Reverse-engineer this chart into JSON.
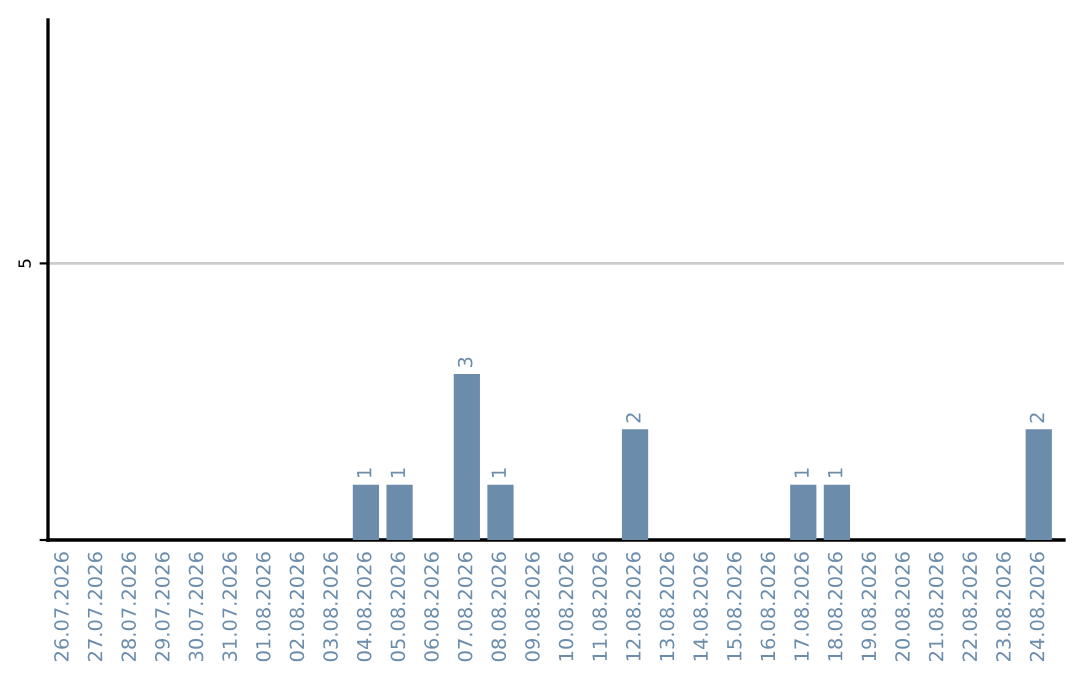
{
  "chart_data": {
    "type": "bar",
    "categories": [
      "26.07.2026",
      "27.07.2026",
      "28.07.2026",
      "29.07.2026",
      "30.07.2026",
      "31.07.2026",
      "01.08.2026",
      "02.08.2026",
      "03.08.2026",
      "04.08.2026",
      "05.08.2026",
      "06.08.2026",
      "07.08.2026",
      "08.08.2026",
      "09.08.2026",
      "10.08.2026",
      "11.08.2026",
      "12.08.2026",
      "13.08.2026",
      "14.08.2026",
      "15.08.2026",
      "16.08.2026",
      "17.08.2026",
      "18.08.2026",
      "19.08.2026",
      "20.08.2026",
      "21.08.2026",
      "22.08.2026",
      "23.08.2026",
      "24.08.2026"
    ],
    "values": [
      0,
      0,
      0,
      0,
      0,
      0,
      0,
      0,
      0,
      1,
      1,
      0,
      3,
      1,
      0,
      0,
      0,
      2,
      0,
      0,
      0,
      0,
      1,
      1,
      0,
      0,
      0,
      0,
      0,
      2
    ],
    "value_labels": [
      null,
      null,
      null,
      null,
      null,
      null,
      null,
      null,
      null,
      "1",
      "1",
      null,
      "3",
      "1",
      null,
      null,
      null,
      "2",
      null,
      null,
      null,
      null,
      "1",
      "1",
      null,
      null,
      null,
      null,
      null,
      "2"
    ],
    "color": "#6b8cab",
    "ylim": [
      0,
      9.4
    ],
    "yticks": [
      {
        "value": 0,
        "label": null
      },
      5
    ],
    "grid": "y"
  }
}
